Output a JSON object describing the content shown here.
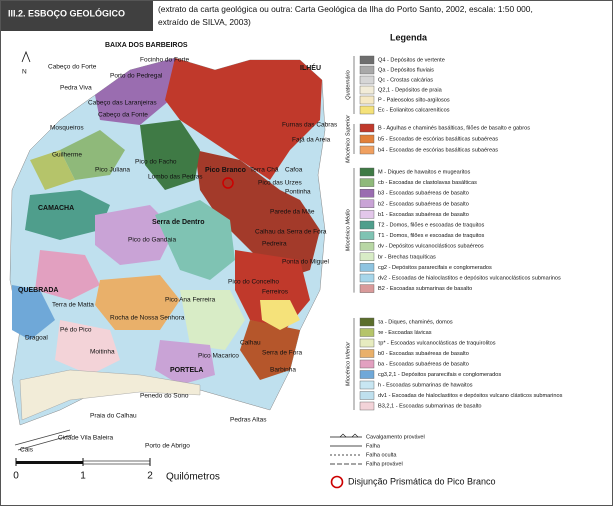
{
  "header": {
    "title": "III.2. ESBOÇO GEOLÓGICO",
    "caption_lines": [
      "(extrato da carta geológica ou outra: Carta Geológica da Ilha do Porto Santo, 2002, escala: 1:50 000,",
      "extraído de SILVA, 2003)"
    ]
  },
  "map": {
    "north": "N",
    "places": [
      "BAIXA DOS BARBEIROS",
      "Focinho do Forte",
      "Cabeço do Forte",
      "Porto do Pedregal",
      "Pedra Viva",
      "Cabeço das Laranjeiras",
      "Cabeço da Fonte",
      "Mosqueiros",
      "Guilherme",
      "Pico do Facho",
      "Pico Juliana",
      "Lombo das Pedras",
      "Pico Branco",
      "Terra Chã",
      "Cafoa",
      "Pico das Urzes",
      "Pontinha",
      "ILHÉU",
      "Furnas das Cabras",
      "Fajã da Areia",
      "Serra de Dentro",
      "Parede da Mãe",
      "Pico do Gandaia",
      "Calhau da Serra de Fora",
      "Pedreira",
      "Ponta do Miguel",
      "CAMACHA",
      "Pico do Concelho",
      "Ferreiros",
      "Terra de Matta",
      "Rocha de Nossa Senhora",
      "QUEBRADA",
      "Pé do Pico",
      "Dragoal",
      "Moitinha",
      "Pico Ana Ferreira",
      "Calhau",
      "PORTELA",
      "Pico Macarico",
      "Serra de Fora",
      "Barbinha",
      "Penedo do Sono",
      "Praia do Calhau",
      "Cidade Vila Baleira",
      "Porto de Abrigo",
      "Cais",
      "Pedras Altas"
    ]
  },
  "legend": {
    "title": "Legenda",
    "groups": [
      {
        "name": "Quaternário",
        "items": [
          {
            "text": "Q4 - Depósitos de vertente",
            "color": "#6e6e6e"
          },
          {
            "text": "Qa - Depósitos fluviais",
            "color": "#a9a9a9"
          },
          {
            "text": "Qc - Crostas calcárias",
            "color": "#d6d6d6"
          },
          {
            "text": "Q2,1 - Depósitos de praia",
            "color": "#f2ecd8"
          },
          {
            "text": "P - Paleosolos silto-argilosos",
            "color": "#f6e9c4"
          },
          {
            "text": "Ec - Eolianitos calcareníticos",
            "color": "#f5e27a"
          }
        ]
      },
      {
        "name": "Miocénico Superior",
        "items": [
          {
            "text": "B - Agulhas e chaminés basálticas, filões de basalto e gabros",
            "color": "#c0392b"
          },
          {
            "text": "b5 - Escoadas de escórias basálticas subaéreas",
            "color": "#e2803a"
          },
          {
            "text": "b4 - Escoadas de escórias basálticas subaéreas",
            "color": "#f0a060"
          }
        ]
      },
      {
        "name": "Miocénico Médio",
        "items": [
          {
            "text": "M - Diques de hawaitos e mugearitos",
            "color": "#3f7a45"
          },
          {
            "text": "cb - Escoadas de clastolavas basálticas",
            "color": "#8fb97a"
          },
          {
            "text": "b3 - Escoadas subaéreas de basalto",
            "color": "#9a6db0"
          },
          {
            "text": "b2 - Escoadas subaéreas de basalto",
            "color": "#c9a3d6"
          },
          {
            "text": "b1 - Escoadas subaéreas de basalto",
            "color": "#e3c7ea"
          },
          {
            "text": "T2 - Domos, filões e escoadas de traquitos",
            "color": "#4f9e8c"
          },
          {
            "text": "T1 - Domos, filões e escoadas de traquitos",
            "color": "#7fc3b3"
          },
          {
            "text": "dv - Depósitos vulcanoclásticos subaéreos",
            "color": "#b8d7a4"
          },
          {
            "text": "br - Brechas traquíticas",
            "color": "#d8ecc6"
          },
          {
            "text": "cg2 - Depósitos pararecifais e conglomerados",
            "color": "#8ec4e0"
          },
          {
            "text": "dv2 - Escoadas de hialoclastitos e depósitos vulcanoclásticos submarinos",
            "color": "#a7d6ea"
          },
          {
            "text": "B2 - Escoadas submarinas de basalto",
            "color": "#d99a9a"
          }
        ]
      },
      {
        "name": "Miocénico Inferior",
        "items": [
          {
            "text": "τa - Diques, chaminés, domos",
            "color": "#5b6e2c"
          },
          {
            "text": "τe - Escoadas lávicas",
            "color": "#b5c46a"
          },
          {
            "text": "τp* - Escoadas vulcanoclásticas de traquirolitos",
            "color": "#e7ecc0"
          },
          {
            "text": "b0 - Escoadas subaéreas de basalto",
            "color": "#e9b06a"
          },
          {
            "text": "ba - Escoadas subaéreas de basalto",
            "color": "#e2a0c0"
          },
          {
            "text": "cg3,2,1 - Depósitos pararecifais e conglomerados",
            "color": "#6fa8d8"
          },
          {
            "text": "h - Escoadas submarinas de hawaitos",
            "color": "#c8e6f2"
          },
          {
            "text": "dv1 - Escoadas de hialoclastitos e depósitos vulcano clásticos submarinos",
            "color": "#bfe0ee"
          },
          {
            "text": "B3,2,1 - Escoadas submarinas de basalto",
            "color": "#f3d3d8"
          }
        ]
      }
    ],
    "lines": [
      "Cavalgamento provável",
      "Falha",
      "Falha oculta",
      "Falha provável"
    ],
    "highlight": "Disjunção Prismática do Pico Branco"
  },
  "scale": {
    "ticks": [
      "0",
      "1",
      "2"
    ],
    "unit": "Quilómetros"
  }
}
